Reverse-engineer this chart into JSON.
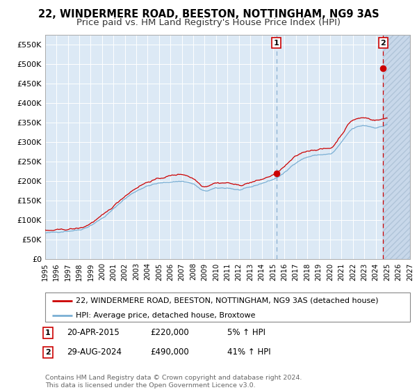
{
  "title": "22, WINDERMERE ROAD, BEESTON, NOTTINGHAM, NG9 3AS",
  "subtitle": "Price paid vs. HM Land Registry's House Price Index (HPI)",
  "background_color": "#dce9f5",
  "hatch_color": "#c8d8ea",
  "ylim": [
    0,
    575000
  ],
  "yticks": [
    0,
    50000,
    100000,
    150000,
    200000,
    250000,
    300000,
    350000,
    400000,
    450000,
    500000,
    550000
  ],
  "ytick_labels": [
    "£0",
    "£50K",
    "£100K",
    "£150K",
    "£200K",
    "£250K",
    "£300K",
    "£350K",
    "£400K",
    "£450K",
    "£500K",
    "£550K"
  ],
  "year_start": 1995,
  "year_end": 2027,
  "sale1_date": 2015.29,
  "sale1_price": 220000,
  "sale1_label": "1",
  "sale1_text": "20-APR-2015",
  "sale1_amount": "£220,000",
  "sale1_hpi": "5% ↑ HPI",
  "sale2_date": 2024.65,
  "sale2_price": 490000,
  "sale2_label": "2",
  "sale2_text": "29-AUG-2024",
  "sale2_amount": "£490,000",
  "sale2_hpi": "41% ↑ HPI",
  "line1_color": "#cc0000",
  "line2_color": "#7aafd4",
  "legend1": "22, WINDERMERE ROAD, BEESTON, NOTTINGHAM, NG9 3AS (detached house)",
  "legend2": "HPI: Average price, detached house, Broxtowe",
  "footer": "Contains HM Land Registry data © Crown copyright and database right 2024.\nThis data is licensed under the Open Government Licence v3.0.",
  "grid_color": "#ffffff",
  "title_fontsize": 10.5,
  "subtitle_fontsize": 9.5
}
